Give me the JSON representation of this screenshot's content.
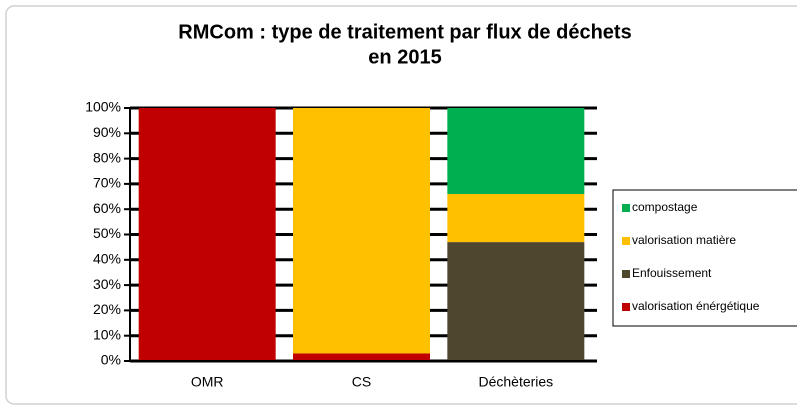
{
  "chart_data": {
    "type": "stacked_bar",
    "title": "RMCom :  type de traitement par flux de déchets",
    "subtitle": "en 2015",
    "categories": [
      "OMR",
      "CS",
      "Déchèteries"
    ],
    "series": [
      {
        "name": "valorisation énérgétique",
        "color": "#c00000",
        "values": [
          100,
          3,
          0
        ]
      },
      {
        "name": "Enfouissement",
        "color": "#4f4630",
        "values": [
          0,
          0,
          47
        ]
      },
      {
        "name": "valorisation matière",
        "color": "#ffc000",
        "values": [
          0,
          97,
          19
        ]
      },
      {
        "name": "compostage",
        "color": "#00b050",
        "values": [
          0,
          0,
          34
        ]
      }
    ],
    "ylim": [
      0,
      100
    ],
    "yticks": [
      {
        "value": 0,
        "label": "0%"
      },
      {
        "value": 10,
        "label": "10%"
      },
      {
        "value": 20,
        "label": "20%"
      },
      {
        "value": 30,
        "label": "30%"
      },
      {
        "value": 40,
        "label": "40%"
      },
      {
        "value": 50,
        "label": "50%"
      },
      {
        "value": 60,
        "label": "60%"
      },
      {
        "value": 70,
        "label": "70%"
      },
      {
        "value": 80,
        "label": "80%"
      },
      {
        "value": 90,
        "label": "90%"
      },
      {
        "value": 100,
        "label": "100%"
      }
    ],
    "grid": true,
    "legend": "right"
  }
}
